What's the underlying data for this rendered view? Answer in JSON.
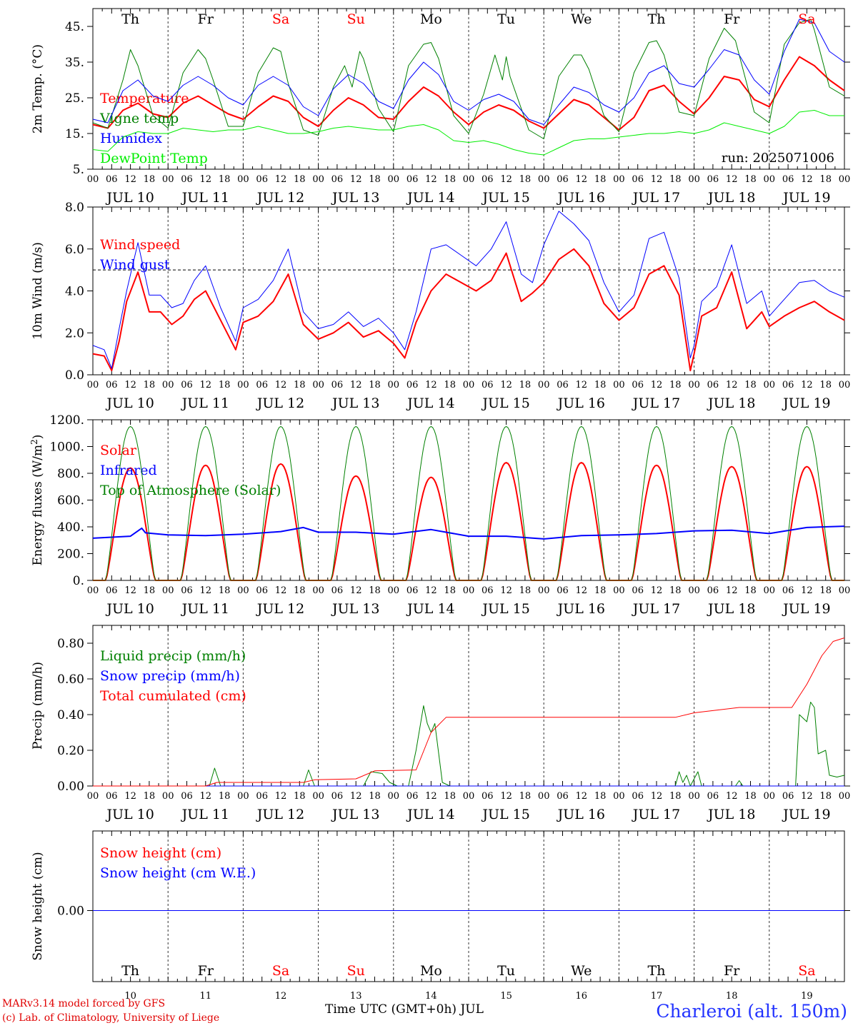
{
  "days": [
    "10",
    "11",
    "12",
    "13",
    "14",
    "15",
    "16",
    "17",
    "18",
    "19"
  ],
  "weekdays": [
    "Th",
    "Fr",
    "Sa",
    "Su",
    "Mo",
    "Tu",
    "We",
    "Th",
    "Fr",
    "Sa"
  ],
  "weekend_flags": [
    false,
    false,
    true,
    true,
    false,
    false,
    false,
    false,
    false,
    true
  ],
  "date_labels": [
    "JUL 10",
    "JUL 11",
    "JUL 12",
    "JUL 13",
    "JUL 14",
    "JUL 15",
    "JUL 16",
    "JUL 17",
    "JUL 18",
    "JUL 19"
  ],
  "hour_labels": [
    "00",
    "06",
    "12",
    "18"
  ],
  "hour_end_label": "00",
  "footer": {
    "model": "MARv3.14 model forced by GFS",
    "lab": "(c) Lab. of Climatology, University of Liege",
    "xlabel": "Time UTC (GMT+0h) JUL",
    "station": "Charleroi (alt. 150m)"
  },
  "colors": {
    "red": "#ff0000",
    "blue": "#0000ff",
    "green": "#008000",
    "lime": "#00ee00"
  },
  "chart_data": [
    {
      "type": "line",
      "ylabel": "2m Temp. (°C)",
      "ylim": [
        5,
        50
      ],
      "yticks": [
        5,
        15,
        25,
        35,
        45
      ],
      "ytick_labels": [
        "5.",
        "15.",
        "25.",
        "35.",
        "45."
      ],
      "x_unit": "day offset from JUL 10 00 UTC",
      "run_label": "run: 2025071006",
      "series": [
        {
          "name": "Temperature",
          "color": "#ff0000",
          "width": 2,
          "x": [
            0,
            0.2,
            0.4,
            0.6,
            0.8,
            1,
            1.2,
            1.4,
            1.6,
            1.8,
            2,
            2.2,
            2.4,
            2.6,
            2.8,
            3,
            3.2,
            3.4,
            3.6,
            3.8,
            4,
            4.2,
            4.4,
            4.6,
            4.8,
            5,
            5.2,
            5.4,
            5.6,
            5.8,
            6,
            6.2,
            6.4,
            6.6,
            6.8,
            7,
            7.2,
            7.4,
            7.6,
            7.8,
            8,
            8.2,
            8.4,
            8.6,
            8.8,
            9,
            9.2,
            9.4,
            9.6,
            9.8,
            10
          ],
          "values": [
            17.5,
            16.5,
            21.5,
            23.5,
            20.5,
            19.5,
            23.5,
            25.5,
            23,
            20.5,
            19,
            22.5,
            25.5,
            24,
            19.5,
            17,
            21.5,
            25,
            23,
            19.5,
            19,
            24,
            28,
            25.5,
            21,
            17.5,
            21,
            23,
            21.5,
            18.5,
            16.5,
            20.5,
            24.5,
            23,
            19.5,
            16,
            19.5,
            27,
            28.5,
            24,
            20.5,
            25,
            31,
            30,
            24.5,
            22.5,
            30,
            36.5,
            34,
            30,
            27
          ]
        },
        {
          "name": "Vigne temp",
          "color": "#008000",
          "width": 1,
          "x": [
            0,
            0.2,
            0.4,
            0.5,
            0.6,
            0.8,
            1,
            1.2,
            1.4,
            1.5,
            1.6,
            1.8,
            2,
            2.2,
            2.4,
            2.5,
            2.6,
            2.8,
            3,
            3.2,
            3.35,
            3.45,
            3.55,
            3.6,
            3.8,
            4,
            4.2,
            4.4,
            4.5,
            4.6,
            4.8,
            5,
            5.2,
            5.35,
            5.45,
            5.5,
            5.55,
            5.6,
            5.8,
            6,
            6.2,
            6.4,
            6.5,
            6.6,
            6.8,
            7,
            7.2,
            7.4,
            7.5,
            7.6,
            7.8,
            8,
            8.2,
            8.4,
            8.55,
            8.6,
            8.8,
            9,
            9.2,
            9.4,
            9.55,
            9.6,
            9.8,
            10
          ],
          "values": [
            18,
            16.5,
            30,
            38.5,
            34,
            20,
            16.5,
            32,
            38.5,
            36,
            30,
            17,
            17,
            32,
            39,
            38,
            29,
            16,
            14.5,
            28,
            34,
            28,
            38,
            36,
            22,
            15.5,
            34,
            40,
            40.5,
            36,
            20,
            15,
            26,
            37,
            30,
            36.5,
            31,
            28,
            16,
            13.5,
            31,
            37,
            37,
            33,
            20,
            15.5,
            32,
            40.5,
            41,
            37,
            21,
            20,
            36,
            44.5,
            41,
            37,
            21,
            18,
            40,
            46,
            47,
            44,
            28,
            25.5
          ]
        },
        {
          "name": "Humidex",
          "color": "#0000ff",
          "width": 1,
          "x": [
            0,
            0.2,
            0.4,
            0.6,
            0.8,
            1,
            1.2,
            1.4,
            1.6,
            1.8,
            2,
            2.2,
            2.4,
            2.6,
            2.8,
            3,
            3.2,
            3.4,
            3.6,
            3.8,
            4,
            4.2,
            4.4,
            4.6,
            4.8,
            5,
            5.2,
            5.4,
            5.6,
            5.8,
            6,
            6.2,
            6.4,
            6.6,
            6.8,
            7,
            7.2,
            7.4,
            7.6,
            7.8,
            8,
            8.2,
            8.4,
            8.6,
            8.8,
            9,
            9.2,
            9.4,
            9.6,
            9.8,
            10
          ],
          "values": [
            19,
            18,
            27,
            30,
            25.5,
            24,
            28.5,
            31,
            28.5,
            25,
            23,
            28.5,
            31,
            28.5,
            22.5,
            20,
            27.5,
            31.5,
            29,
            24,
            22,
            30,
            35,
            31.5,
            24,
            21.5,
            24.5,
            26,
            24,
            19,
            17.5,
            23,
            28,
            26.5,
            23,
            21,
            25,
            32,
            34,
            29,
            28,
            33,
            38.5,
            37,
            30,
            26,
            38,
            47,
            46,
            38,
            35
          ]
        },
        {
          "name": "DewPoint Temp",
          "color": "#00ee00",
          "width": 1,
          "x": [
            0,
            0.2,
            0.4,
            0.6,
            0.8,
            1,
            1.2,
            1.4,
            1.6,
            1.8,
            2,
            2.2,
            2.4,
            2.6,
            2.8,
            3,
            3.2,
            3.4,
            3.6,
            3.8,
            4,
            4.2,
            4.4,
            4.6,
            4.8,
            5,
            5.2,
            5.4,
            5.6,
            5.8,
            6,
            6.2,
            6.4,
            6.6,
            6.8,
            7,
            7.2,
            7.4,
            7.6,
            7.8,
            8,
            8.2,
            8.4,
            8.6,
            8.8,
            9,
            9.2,
            9.4,
            9.6,
            9.8,
            10
          ],
          "values": [
            10.5,
            10,
            14,
            15.5,
            15,
            15,
            16.5,
            16,
            15.5,
            16,
            16,
            17,
            16,
            15,
            15,
            15.5,
            16.5,
            17,
            16.5,
            16,
            16,
            17,
            17.5,
            16,
            13,
            12.5,
            13,
            12,
            10.5,
            9.5,
            9,
            11,
            13,
            13.5,
            13.5,
            14,
            14.5,
            15,
            15,
            15.5,
            15,
            16,
            18,
            17,
            16,
            15,
            17,
            21,
            21.5,
            20,
            20
          ]
        }
      ]
    },
    {
      "type": "line",
      "ylabel": "10m Wind (m/s)",
      "ylim": [
        0,
        8
      ],
      "yticks": [
        0,
        2,
        4,
        6,
        8
      ],
      "ytick_labels": [
        "0.0",
        "2.0",
        "4.0",
        "6.0",
        "8.0"
      ],
      "x_unit": "day offset from JUL 10 00 UTC",
      "reference_line": 5,
      "series": [
        {
          "name": "Wind speed",
          "color": "#ff0000",
          "width": 2,
          "x": [
            0,
            0.15,
            0.25,
            0.35,
            0.45,
            0.6,
            0.75,
            0.9,
            1.05,
            1.2,
            1.35,
            1.5,
            1.7,
            1.9,
            2.0,
            2.2,
            2.4,
            2.6,
            2.8,
            3.0,
            3.2,
            3.4,
            3.6,
            3.8,
            4.0,
            4.15,
            4.3,
            4.5,
            4.7,
            4.9,
            5.1,
            5.3,
            5.5,
            5.7,
            5.85,
            6.0,
            6.2,
            6.4,
            6.6,
            6.8,
            7.0,
            7.2,
            7.4,
            7.6,
            7.8,
            7.95,
            8.0,
            8.1,
            8.3,
            8.5,
            8.7,
            8.9,
            9.0,
            9.2,
            9.4,
            9.6,
            9.8,
            10
          ],
          "values": [
            1.0,
            0.9,
            0.2,
            1.6,
            3.5,
            4.9,
            3.0,
            3.0,
            2.4,
            2.8,
            3.6,
            4.0,
            2.6,
            1.2,
            2.5,
            2.8,
            3.5,
            4.8,
            2.4,
            1.7,
            2.0,
            2.5,
            1.8,
            2.1,
            1.5,
            0.8,
            2.5,
            4.0,
            4.8,
            4.4,
            4.0,
            4.5,
            5.8,
            3.5,
            3.9,
            4.4,
            5.5,
            6.0,
            5.2,
            3.4,
            2.6,
            3.2,
            4.8,
            5.2,
            3.8,
            0.2,
            1.0,
            2.8,
            3.2,
            4.9,
            2.2,
            3.0,
            2.3,
            2.8,
            3.2,
            3.5,
            3.0,
            2.6
          ]
        },
        {
          "name": "Wind gust",
          "color": "#0000ff",
          "width": 1,
          "x": [
            0,
            0.15,
            0.25,
            0.35,
            0.45,
            0.6,
            0.75,
            0.9,
            1.05,
            1.2,
            1.35,
            1.5,
            1.7,
            1.9,
            2.0,
            2.2,
            2.4,
            2.6,
            2.8,
            3.0,
            3.2,
            3.4,
            3.6,
            3.8,
            4.0,
            4.15,
            4.3,
            4.5,
            4.7,
            4.9,
            5.1,
            5.3,
            5.5,
            5.7,
            5.85,
            6.0,
            6.2,
            6.4,
            6.6,
            6.8,
            7.0,
            7.2,
            7.4,
            7.6,
            7.8,
            7.95,
            8.0,
            8.1,
            8.3,
            8.5,
            8.7,
            8.9,
            9.0,
            9.2,
            9.4,
            9.6,
            9.8,
            10
          ],
          "values": [
            1.4,
            1.2,
            0.3,
            2.2,
            4.0,
            6.3,
            3.8,
            3.8,
            3.2,
            3.4,
            4.5,
            5.2,
            3.2,
            1.6,
            3.2,
            3.6,
            4.5,
            6.0,
            3.0,
            2.2,
            2.4,
            3.0,
            2.3,
            2.7,
            2.0,
            1.2,
            3.0,
            6.0,
            6.2,
            5.7,
            5.2,
            6.0,
            7.3,
            4.8,
            4.4,
            6.2,
            7.8,
            7.2,
            6.4,
            4.4,
            3.0,
            3.8,
            6.5,
            6.8,
            4.6,
            0.8,
            1.4,
            3.5,
            4.2,
            6.2,
            3.4,
            4.0,
            2.8,
            3.6,
            4.4,
            4.5,
            4.0,
            3.7
          ]
        }
      ]
    },
    {
      "type": "line",
      "ylabel": "Energy fluxes (W/m2)",
      "ylim": [
        0,
        1200
      ],
      "yticks": [
        0,
        200,
        400,
        600,
        800,
        1000,
        1200
      ],
      "ytick_labels": [
        "0.",
        "200.",
        "400.",
        "600.",
        "800.",
        "1000.",
        "1200."
      ],
      "x_unit": "day offset from JUL 10 00 UTC",
      "daylight_start_h": 4.1,
      "daylight_end_h": 19.9,
      "series": [
        {
          "name": "Solar",
          "color": "#ff0000",
          "width": 2,
          "daily_peak": [
            840,
            860,
            870,
            780,
            770,
            880,
            880,
            860,
            850,
            850
          ]
        },
        {
          "name": "Infrared",
          "color": "#0000ff",
          "width": 2,
          "x": [
            0,
            0.5,
            0.65,
            0.7,
            1.0,
            1.5,
            2.0,
            2.5,
            2.8,
            3.0,
            3.5,
            4.0,
            4.5,
            5.0,
            5.5,
            6.0,
            6.5,
            7.0,
            7.5,
            8.0,
            8.5,
            9.0,
            9.5,
            10
          ],
          "values": [
            315,
            330,
            390,
            355,
            340,
            335,
            345,
            365,
            395,
            360,
            360,
            345,
            380,
            330,
            330,
            310,
            335,
            340,
            350,
            370,
            375,
            350,
            395,
            405
          ]
        },
        {
          "name": "Top of Atmosphere (Solar)",
          "color": "#008000",
          "width": 1,
          "daily_peak": [
            1150,
            1150,
            1150,
            1150,
            1150,
            1150,
            1150,
            1150,
            1150,
            1150
          ]
        }
      ]
    },
    {
      "type": "line",
      "ylabel": "Precip (mm/h)",
      "ylim": [
        0,
        0.9
      ],
      "yticks": [
        0,
        0.2,
        0.4,
        0.6,
        0.8
      ],
      "ytick_labels": [
        "0.00",
        "0.20",
        "0.40",
        "0.60",
        "0.80"
      ],
      "x_unit": "day offset from JUL 10 00 UTC",
      "series": [
        {
          "name": "Liquid precip (mm/h)",
          "color": "#008000",
          "width": 1,
          "x": [
            0,
            1.55,
            1.62,
            1.7,
            2.8,
            2.87,
            2.95,
            3.6,
            3.7,
            3.85,
            3.95,
            4.05,
            4.2,
            4.3,
            4.4,
            4.45,
            4.5,
            4.55,
            4.65,
            4.75,
            4.8,
            7.75,
            7.8,
            7.85,
            7.9,
            7.95,
            8.05,
            8.1,
            8.2,
            8.55,
            8.6,
            8.65,
            9.35,
            9.4,
            9.5,
            9.55,
            9.6,
            9.65,
            9.75,
            9.8,
            9.9,
            10
          ],
          "values": [
            0,
            0,
            0.1,
            0,
            0,
            0.09,
            0,
            0,
            0.08,
            0.07,
            0.02,
            0,
            0,
            0.2,
            0.45,
            0.35,
            0.3,
            0.35,
            0.02,
            0,
            0,
            0,
            0.08,
            0.02,
            0.06,
            0,
            0.08,
            0,
            0,
            0,
            0.03,
            0,
            0,
            0.4,
            0.36,
            0.47,
            0.44,
            0.18,
            0.2,
            0.06,
            0.05,
            0.06
          ]
        },
        {
          "name": "Snow precip (mm/h)",
          "color": "#0000ff",
          "width": 1,
          "x": [
            0,
            10
          ],
          "values": [
            0,
            0
          ]
        },
        {
          "name": "Total cumulated (cm)",
          "color": "#ff0000",
          "width": 1,
          "x": [
            0,
            1.5,
            1.65,
            2.8,
            2.95,
            3.5,
            3.75,
            4.3,
            4.5,
            4.7,
            7.75,
            8.0,
            8.3,
            8.6,
            9.3,
            9.5,
            9.7,
            9.85,
            10
          ],
          "values": [
            0,
            0,
            0.02,
            0.02,
            0.035,
            0.04,
            0.085,
            0.09,
            0.3,
            0.385,
            0.385,
            0.41,
            0.425,
            0.44,
            0.44,
            0.57,
            0.73,
            0.81,
            0.83
          ]
        }
      ]
    },
    {
      "type": "line",
      "ylabel": "Snow height (cm)",
      "yticks": [
        0
      ],
      "ytick_labels": [
        "0.00"
      ],
      "x_unit": "day offset from JUL 10 00 UTC",
      "series": [
        {
          "name": "Snow height (cm)",
          "color": "#ff0000",
          "width": 1,
          "x": [
            0,
            10
          ],
          "values": [
            0,
            0
          ]
        },
        {
          "name": "Snow height (cm W.E.)",
          "color": "#0000ff",
          "width": 1,
          "x": [
            0,
            10
          ],
          "values": [
            0,
            0
          ]
        }
      ]
    }
  ]
}
